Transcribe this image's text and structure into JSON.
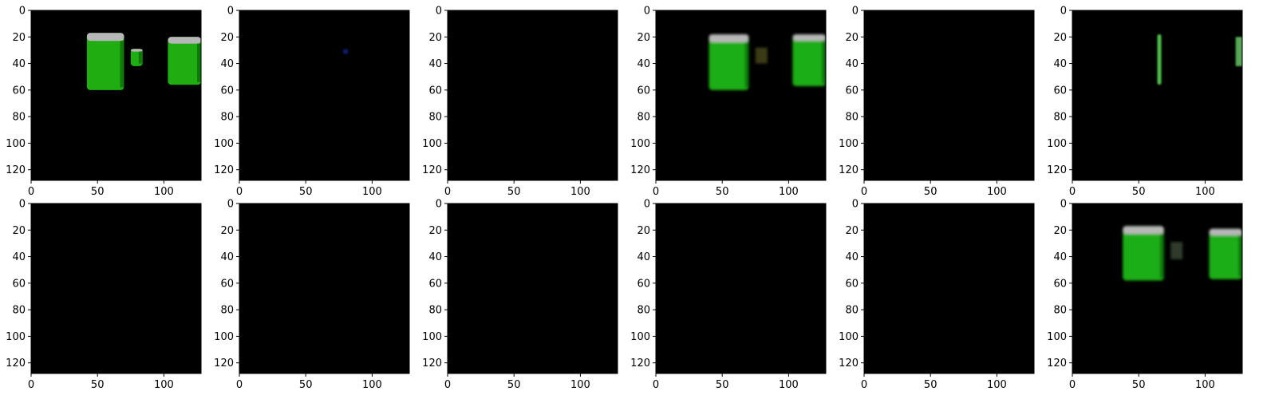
{
  "figure": {
    "grid_rows": 2,
    "grid_cols": 6,
    "background_color": "#000000",
    "foam_color": "#b7b7b7",
    "beer_color": "#1fae12",
    "axes": {
      "x_ticks": [
        "0",
        "50",
        "100"
      ],
      "y_ticks": [
        "0",
        "20",
        "40",
        "60",
        "80",
        "100",
        "120"
      ],
      "xlim": [
        0,
        128
      ],
      "ylim": [
        128,
        0
      ]
    }
  },
  "panels": [
    {
      "content": "mugs-sharp"
    },
    {
      "content": "blue-dot"
    },
    {
      "content": "black"
    },
    {
      "content": "mugs-blurry"
    },
    {
      "content": "black"
    },
    {
      "content": "green-streak"
    },
    {
      "content": "black"
    },
    {
      "content": "black"
    },
    {
      "content": "black"
    },
    {
      "content": "black"
    },
    {
      "content": "black"
    },
    {
      "content": "mugs-blurry-2"
    }
  ]
}
